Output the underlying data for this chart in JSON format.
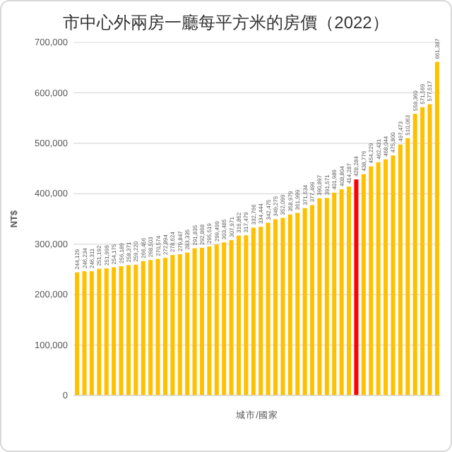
{
  "chart_data": {
    "type": "bar",
    "title": "市中心外兩房一廳每平方米的房價（2022）",
    "xlabel": "城市/國家",
    "ylabel": "NT$",
    "categories": [
      null,
      null,
      null,
      null,
      null,
      null,
      null,
      null,
      null,
      null,
      null,
      null,
      null,
      null,
      null,
      null,
      null,
      null,
      null,
      null,
      null,
      null,
      null,
      null,
      null,
      null,
      null,
      null,
      null,
      null,
      null,
      null,
      null,
      null,
      null,
      null,
      null,
      null,
      null,
      null,
      null,
      null,
      null,
      null,
      null,
      null,
      null,
      null,
      null,
      null
    ],
    "values": [
      244129,
      246234,
      246311,
      251192,
      251999,
      254175,
      256189,
      258371,
      259220,
      266456,
      268503,
      270574,
      272894,
      278624,
      279847,
      283335,
      291835,
      292868,
      295519,
      299499,
      303485,
      307971,
      316862,
      317479,
      332766,
      334444,
      342475,
      349275,
      352099,
      358979,
      361999,
      371534,
      377499,
      390897,
      391571,
      401989,
      408804,
      414287,
      428284,
      438776,
      454229,
      462431,
      468044,
      475800,
      497473,
      510063,
      558360,
      571569,
      577517,
      661387
    ],
    "colors": [
      "#ffc000",
      "#ffc000",
      "#ffc000",
      "#ffc000",
      "#ffc000",
      "#ffc000",
      "#ffc000",
      "#ffc000",
      "#ffc000",
      "#ffc000",
      "#ffc000",
      "#ffc000",
      "#ffc000",
      "#ffc000",
      "#ffc000",
      "#ffc000",
      "#ffc000",
      "#ffc000",
      "#ffc000",
      "#ffc000",
      "#ffc000",
      "#ffc000",
      "#ffc000",
      "#ffc000",
      "#ffc000",
      "#ffc000",
      "#ffc000",
      "#ffc000",
      "#ffc000",
      "#ffc000",
      "#ffc000",
      "#ffc000",
      "#ffc000",
      "#ffc000",
      "#ffc000",
      "#ffc000",
      "#ffc000",
      "#ffc000",
      "#ff0000",
      "#ffc000",
      "#ffc000",
      "#ffc000",
      "#ffc000",
      "#ffc000",
      "#ffc000",
      "#ffc000",
      "#ffc000",
      "#ffc000",
      "#ffc000",
      "#ffc000"
    ],
    "ylim": [
      0,
      700000
    ],
    "yticks": [
      {
        "value": 0,
        "label": "0"
      },
      {
        "value": 100000,
        "label": "100,000"
      },
      {
        "value": 200000,
        "label": "200,000"
      },
      {
        "value": 300000,
        "label": "300,000"
      },
      {
        "value": 400000,
        "label": "400,000"
      },
      {
        "value": 500000,
        "label": "500,000"
      },
      {
        "value": 600000,
        "label": "600,000"
      },
      {
        "value": 700000,
        "label": "700,000"
      }
    ],
    "value_labels": [
      "244,129",
      "246,234",
      "246,311",
      "251,192",
      "251,999",
      "254,175",
      "256,189",
      "258,371",
      "259,220",
      "266,456",
      "268,503",
      "270,574",
      "272,894",
      "278,624",
      "279,847",
      "283,335",
      "291,835",
      "292,868",
      "295,519",
      "299,499",
      "303,485",
      "307,971",
      "316,862",
      "317,479",
      "332,766",
      "334,444",
      "342,475",
      "349,275",
      "352,099",
      "358,979",
      "361,999",
      "371,534",
      "377,499",
      "390,897",
      "391,571",
      "401,989",
      "408,804",
      "414,287",
      "428,284",
      "438,776",
      "454,229",
      "462,431",
      "468,044",
      "475,800",
      "497,473",
      "510,063",
      "558,360",
      "571,569",
      "577,517",
      "661,387"
    ],
    "grid": "y"
  }
}
